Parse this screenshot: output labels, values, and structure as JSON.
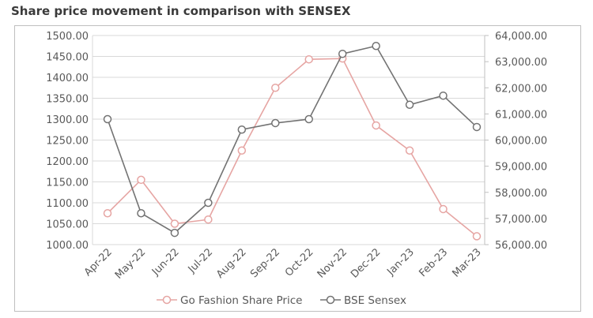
{
  "title": "Share price movement in comparison with SENSEX",
  "chart_data": {
    "type": "line",
    "categories": [
      "Apr-22",
      "May-22",
      "Jun-22",
      "Jul-22",
      "Aug-22",
      "Sep-22",
      "Oct-22",
      "Nov-22",
      "Dec-22",
      "Jan-23",
      "Feb-23",
      "Mar-23"
    ],
    "series": [
      {
        "name": "Go Fashion Share Price",
        "axis": "left",
        "color": "#e6a5a3",
        "values": [
          1075,
          1155,
          1050,
          1060,
          1225,
          1375,
          1443,
          1445,
          1285,
          1225,
          1085,
          1020
        ]
      },
      {
        "name": "BSE Sensex",
        "axis": "right",
        "color": "#737373",
        "values": [
          60800,
          57200,
          56450,
          57600,
          60400,
          60650,
          60800,
          63300,
          63600,
          61350,
          61700,
          60500
        ]
      }
    ],
    "y_left": {
      "min": 1000,
      "max": 1500,
      "step": 50,
      "tick_labels": [
        "1000.00",
        "1050.00",
        "1100.00",
        "1150.00",
        "1200.00",
        "1250.00",
        "1300.00",
        "1350.00",
        "1400.00",
        "1450.00",
        "1500.00"
      ]
    },
    "y_right": {
      "min": 56000,
      "max": 64000,
      "step": 1000,
      "tick_labels": [
        "56,000.00",
        "57,000.00",
        "58,000.00",
        "59,000.00",
        "60,000.00",
        "61,000.00",
        "62,000.00",
        "63,000.00",
        "64,000.00"
      ]
    },
    "grid": true,
    "legend_position": "bottom"
  }
}
